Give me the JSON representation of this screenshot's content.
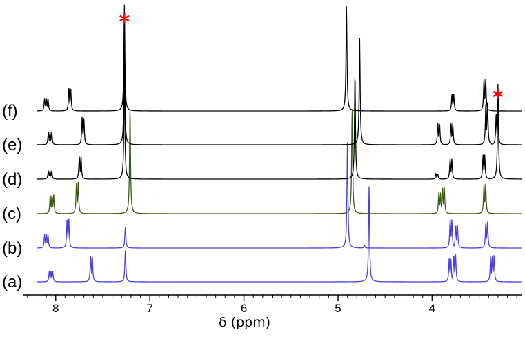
{
  "chart_data": {
    "type": "line",
    "xlabel": "δ (ppm)",
    "xlim": [
      8.35,
      3.05
    ],
    "x_reversed": true,
    "x_ticks": [
      {
        "value": 8,
        "label": "8"
      },
      {
        "value": 7,
        "label": "7"
      },
      {
        "value": 6,
        "label": "6"
      },
      {
        "value": 5,
        "label": "5"
      },
      {
        "value": 4,
        "label": "4"
      }
    ],
    "series": [
      {
        "name": "(a)",
        "color": "#4a3fe0",
        "xstart": 8.2,
        "peaks": [
          {
            "x": 8.05,
            "h": 0.1,
            "m": 3
          },
          {
            "x": 7.62,
            "h": 0.25,
            "m": 2
          },
          {
            "x": 7.26,
            "h": 0.3,
            "m": 1
          },
          {
            "x": 4.67,
            "h": 0.9,
            "m": 1
          },
          {
            "x": 3.81,
            "h": 0.22,
            "m": 2
          },
          {
            "x": 3.76,
            "h": 0.26,
            "m": 2
          },
          {
            "x": 3.36,
            "h": 0.25,
            "m": 3
          }
        ]
      },
      {
        "name": "(b)",
        "color": "#4a3fe0",
        "xstart": 8.2,
        "peaks": [
          {
            "x": 8.1,
            "h": 0.13,
            "m": 3
          },
          {
            "x": 7.87,
            "h": 0.28,
            "m": 2
          },
          {
            "x": 7.26,
            "h": 0.2,
            "m": 1
          },
          {
            "x": 4.9,
            "h": 1.0,
            "m": 1
          },
          {
            "x": 4.72,
            "h": 0.03,
            "m": 1
          },
          {
            "x": 3.8,
            "h": 0.27,
            "m": 2
          },
          {
            "x": 3.74,
            "h": 0.22,
            "m": 2
          },
          {
            "x": 3.42,
            "h": 0.25,
            "m": 2
          }
        ]
      },
      {
        "name": "(c)",
        "color": "#3c5a14",
        "xstart": 8.2,
        "peaks": [
          {
            "x": 8.04,
            "h": 0.18,
            "m": 3
          },
          {
            "x": 7.77,
            "h": 0.3,
            "m": 2
          },
          {
            "x": 7.21,
            "h": 1.0,
            "m": 1
          },
          {
            "x": 4.85,
            "h": 1.0,
            "m": 1
          },
          {
            "x": 3.92,
            "h": 0.2,
            "m": 2
          },
          {
            "x": 3.88,
            "h": 0.25,
            "m": 2
          },
          {
            "x": 3.44,
            "h": 0.28,
            "m": 2
          }
        ]
      },
      {
        "name": "(d)",
        "color": "#000000",
        "xstart": 8.2,
        "peaks": [
          {
            "x": 8.06,
            "h": 0.08,
            "m": 3
          },
          {
            "x": 7.74,
            "h": 0.22,
            "m": 2
          },
          {
            "x": 7.27,
            "h": 1.0,
            "m": 1
          },
          {
            "x": 4.82,
            "h": 1.0,
            "m": 1
          },
          {
            "x": 3.95,
            "h": 0.05,
            "m": 2
          },
          {
            "x": 3.8,
            "h": 0.19,
            "m": 2
          },
          {
            "x": 3.45,
            "h": 0.23,
            "m": 2
          },
          {
            "x": 3.3,
            "h": 0.9,
            "m": 1
          }
        ]
      },
      {
        "name": "(e)",
        "color": "#000000",
        "xstart": 8.2,
        "peaks": [
          {
            "x": 8.06,
            "h": 0.12,
            "m": 3
          },
          {
            "x": 7.71,
            "h": 0.26,
            "m": 2
          },
          {
            "x": 7.27,
            "h": 1.0,
            "m": 1
          },
          {
            "x": 4.77,
            "h": 1.0,
            "m": 1
          },
          {
            "x": 3.93,
            "h": 0.2,
            "m": 2
          },
          {
            "x": 3.79,
            "h": 0.2,
            "m": 2
          },
          {
            "x": 3.42,
            "h": 0.4,
            "m": 2
          },
          {
            "x": 3.31,
            "h": 0.3,
            "m": 2
          }
        ]
      },
      {
        "name": "(f)",
        "color": "#000000",
        "xstart": 8.2,
        "peaks": [
          {
            "x": 8.1,
            "h": 0.12,
            "m": 3
          },
          {
            "x": 7.85,
            "h": 0.22,
            "m": 2
          },
          {
            "x": 7.27,
            "h": 1.0,
            "m": 1
          },
          {
            "x": 4.91,
            "h": 1.0,
            "m": 1
          },
          {
            "x": 3.78,
            "h": 0.16,
            "m": 2
          },
          {
            "x": 3.44,
            "h": 0.3,
            "m": 2
          }
        ]
      }
    ],
    "annotations": [
      {
        "text": "*",
        "x": 7.27,
        "series": "(f)",
        "color": "#ff0000"
      },
      {
        "text": "*",
        "x": 3.3,
        "series": "(f)",
        "color": "#ff0000"
      }
    ]
  }
}
